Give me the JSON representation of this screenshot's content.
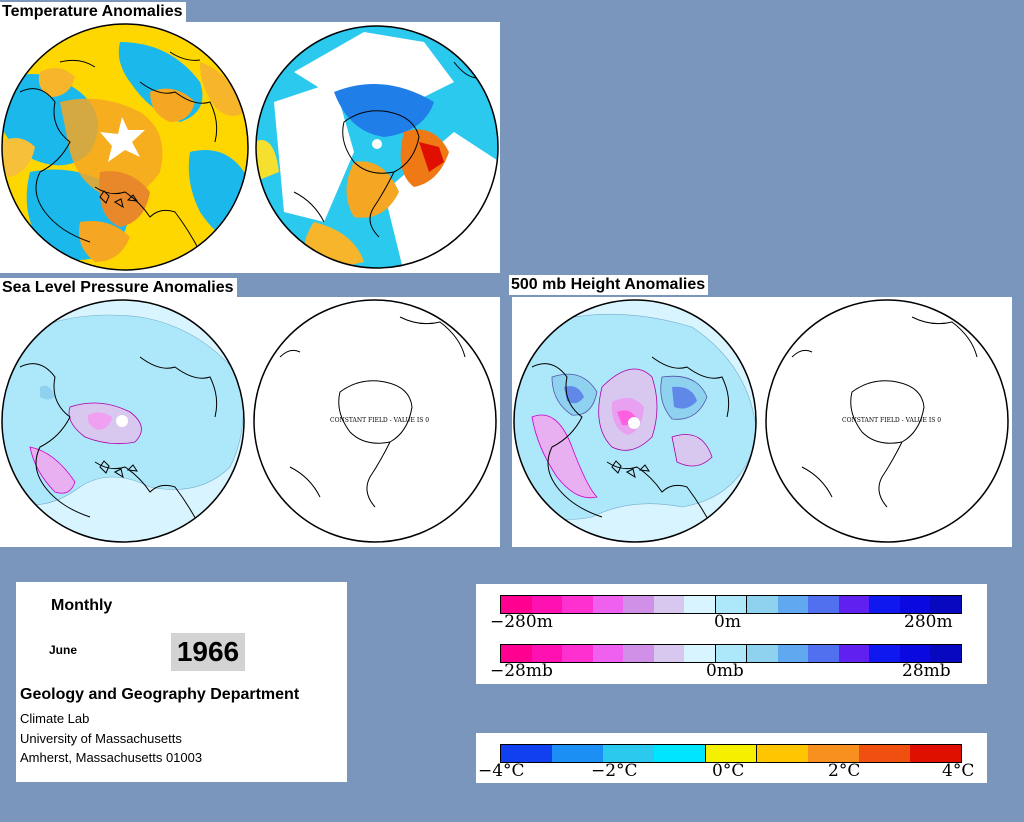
{
  "panels": {
    "temperature": {
      "title": "Temperature Anomalies"
    },
    "slp": {
      "title": "Sea Level Pressure Anomalies",
      "constant_label": "CONSTANT FIELD - VALUE IS 0"
    },
    "h500": {
      "title": "500 mb Height Anomalies",
      "constant_label": "CONSTANT FIELD - VALUE IS 0"
    }
  },
  "info": {
    "period": "Monthly",
    "month": "June",
    "year": "1966",
    "department": "Geology and Geography Department",
    "lab": "Climate Lab",
    "university": "University of Massachusetts",
    "address": "Amherst, Massachusetts 01003"
  },
  "legends": {
    "height": {
      "min": "−280m",
      "mid": "0m",
      "max": "280m"
    },
    "pressure": {
      "min": "−28mb",
      "mid": "0mb",
      "max": "28mb"
    },
    "temperature": {
      "t1": "−4°C",
      "t2": "−2°C",
      "t3": "0°C",
      "t4": "2°C",
      "t5": "4°C"
    }
  },
  "colors": {
    "background": "#7b96bd",
    "anomaly_scale": [
      "#ff0090",
      "#ff10b0",
      "#ff30d0",
      "#f060f0",
      "#d090e8",
      "#d8c8f0",
      "#d8f4ff",
      "#ade8fa",
      "#8fd2f0",
      "#60a8f0",
      "#5070f0",
      "#6020f0",
      "#1018f0",
      "#0a0ae0",
      "#0808c0"
    ],
    "temperature_scale": [
      "#1040f0",
      "#1b8ff3",
      "#2bc9ee",
      "#00e5ff",
      "#f5f000",
      "#ffc500",
      "#f7901e",
      "#ef5010",
      "#e01000"
    ]
  }
}
